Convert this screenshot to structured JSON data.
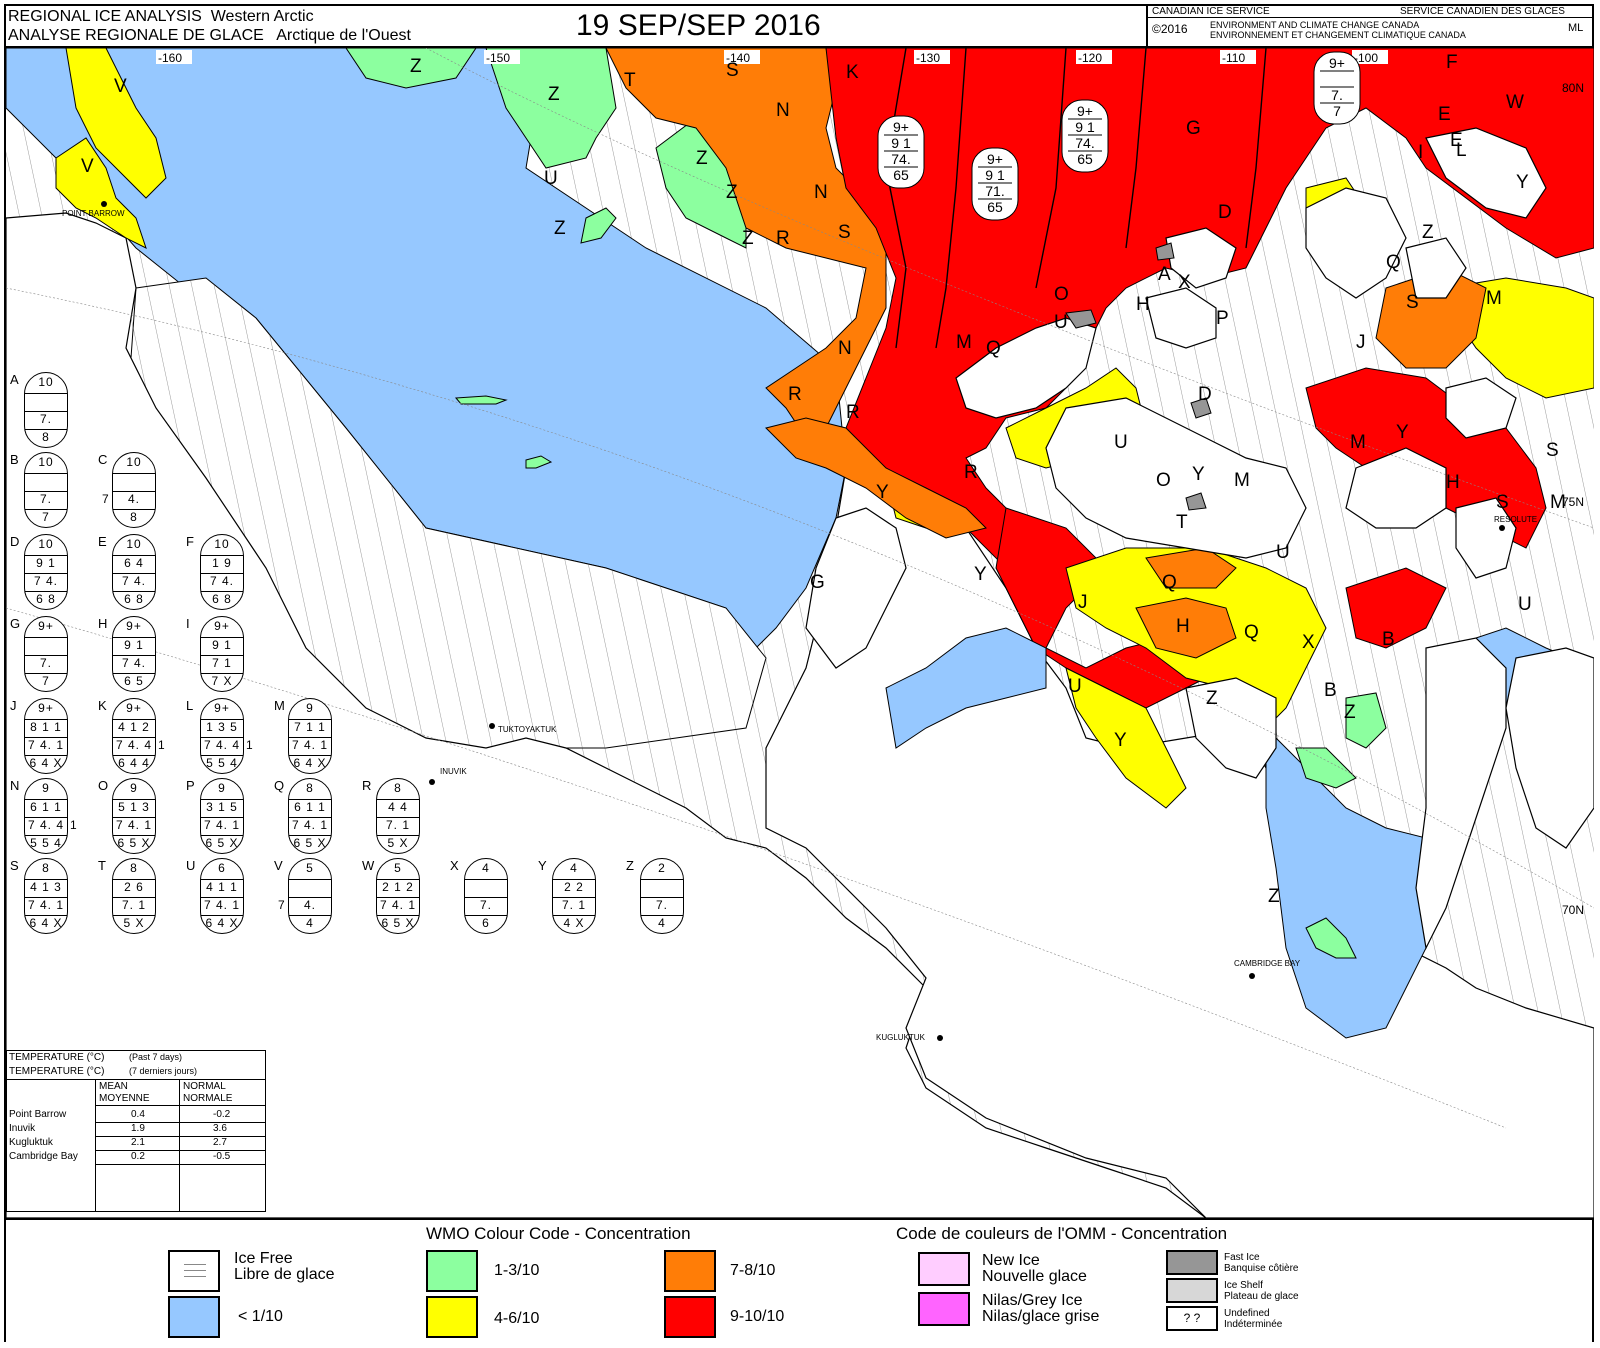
{
  "header": {
    "title_en_1": "REGIONAL ICE ANALYSIS",
    "region_en": "Western Arctic",
    "title_fr_1": "ANALYSE REGIONALE DE GLACE",
    "region_fr": "Arctique de l'Ouest",
    "date": "19 SEP/SEP 2016",
    "agency_en": "CANADIAN ICE SERVICE",
    "agency_fr": "SERVICE CANADIEN DES GLACES",
    "copyright": "©2016",
    "dept_en": "ENVIRONMENT AND CLIMATE CHANGE CANADA",
    "dept_fr": "ENVIRONNEMENT ET CHANGEMENT CLIMATIQUE CANADA",
    "initials": "ML"
  },
  "map": {
    "longitudes": [
      "-160",
      "-150",
      "-140",
      "-130",
      "-120",
      "-110",
      "-100"
    ],
    "latitudes": [
      "80N",
      "75N",
      "70N"
    ],
    "places": [
      "POINT BARROW",
      "TUKTOYAKTUK",
      "INUVIK",
      "RESOLUTE",
      "CAMBRIDGE BAY",
      "KUGLUKTUK"
    ],
    "region_labels": [
      "V",
      "V",
      "Z",
      "Z",
      "Z",
      "T",
      "S",
      "K",
      "U",
      "Z",
      "N",
      "N",
      "R",
      "S",
      "G",
      "I",
      "D",
      "A",
      "X",
      "O",
      "U",
      "M",
      "Q",
      "H",
      "P",
      "J",
      "L",
      "W",
      "F",
      "E",
      "Y",
      "Q",
      "M",
      "Z",
      "S",
      "D",
      "U",
      "Y",
      "M",
      "O",
      "T",
      "J",
      "Q",
      "H",
      "G",
      "Y",
      "Y",
      "U",
      "X",
      "B",
      "Q",
      "Z",
      "B",
      "Z",
      "U",
      "Y",
      "Z",
      "R",
      "R",
      "R",
      "N",
      "Z",
      "Z",
      "M",
      "Y",
      "S",
      "M",
      "E",
      "H",
      "S",
      "U"
    ],
    "inline_eggs": [
      {
        "r1": "9+",
        "r2": "9 1",
        "r3": "74.",
        "r4": "65"
      },
      {
        "r1": "9+",
        "r2": "9 1",
        "r3": "71.",
        "r4": "65"
      },
      {
        "r1": "9+",
        "r2": "9 1",
        "r3": "74.",
        "r4": "65"
      },
      {
        "r1": "9+",
        "r2": "",
        "r3": "7.",
        "r4": "7"
      }
    ]
  },
  "egg_codes": [
    {
      "letter": "A",
      "r1": "10",
      "r2": "",
      "r3": "7.",
      "r4": "8",
      "side_left": "",
      "side_right": ""
    },
    {
      "letter": "B",
      "r1": "10",
      "r2": "",
      "r3": "7.",
      "r4": "7",
      "side_left": "",
      "side_right": ""
    },
    {
      "letter": "C",
      "r1": "10",
      "r2": "",
      "r3": "4.",
      "r4": "8",
      "side_left": "7",
      "side_right": ""
    },
    {
      "letter": "D",
      "r1": "10",
      "r2": "9 1",
      "r3": "7 4.",
      "r4": "6 8",
      "side_left": "",
      "side_right": ""
    },
    {
      "letter": "E",
      "r1": "10",
      "r2": "6 4",
      "r3": "7 4.",
      "r4": "6 8",
      "side_left": "",
      "side_right": ""
    },
    {
      "letter": "F",
      "r1": "10",
      "r2": "1 9",
      "r3": "7 4.",
      "r4": "6 8",
      "side_left": "",
      "side_right": ""
    },
    {
      "letter": "G",
      "r1": "9+",
      "r2": "",
      "r3": "7.",
      "r4": "7",
      "side_left": "",
      "side_right": ""
    },
    {
      "letter": "H",
      "r1": "9+",
      "r2": "9 1",
      "r3": "7 4.",
      "r4": "6 5",
      "side_left": "",
      "side_right": ""
    },
    {
      "letter": "I",
      "r1": "9+",
      "r2": "9 1",
      "r3": "7 1",
      "r4": "7 X",
      "side_left": "",
      "side_right": ""
    },
    {
      "letter": "J",
      "r1": "9+",
      "r2": "8 1 1",
      "r3": "7 4. 1",
      "r4": "6 4 X",
      "side_left": "",
      "side_right": ""
    },
    {
      "letter": "K",
      "r1": "9+",
      "r2": "4 1 2",
      "r3": "7 4. 4",
      "r4": "6 4 4",
      "side_left": "",
      "side_right": "1"
    },
    {
      "letter": "L",
      "r1": "9+",
      "r2": "1 3 5",
      "r3": "7 4. 4",
      "r4": "5 5 4",
      "side_left": "",
      "side_right": "1"
    },
    {
      "letter": "M",
      "r1": "9",
      "r2": "7 1 1",
      "r3": "7 4. 1",
      "r4": "6 4 X",
      "side_left": "",
      "side_right": ""
    },
    {
      "letter": "N",
      "r1": "9",
      "r2": "6 1 1",
      "r3": "7 4. 4",
      "r4": "5 5 4",
      "side_left": "",
      "side_right": "1"
    },
    {
      "letter": "O",
      "r1": "9",
      "r2": "5 1 3",
      "r3": "7 4. 1",
      "r4": "6 5 X",
      "side_left": "",
      "side_right": ""
    },
    {
      "letter": "P",
      "r1": "9",
      "r2": "3 1 5",
      "r3": "7 4. 1",
      "r4": "6 5 X",
      "side_left": "",
      "side_right": ""
    },
    {
      "letter": "Q",
      "r1": "8",
      "r2": "6 1 1",
      "r3": "7 4. 1",
      "r4": "6 5 X",
      "side_left": "",
      "side_right": ""
    },
    {
      "letter": "R",
      "r1": "8",
      "r2": "4 4",
      "r3": "7. 1",
      "r4": "5 X",
      "side_left": "",
      "side_right": ""
    },
    {
      "letter": "S",
      "r1": "8",
      "r2": "4 1 3",
      "r3": "7 4. 1",
      "r4": "6 4 X",
      "side_left": "",
      "side_right": ""
    },
    {
      "letter": "T",
      "r1": "8",
      "r2": "2 6",
      "r3": "7. 1",
      "r4": "5 X",
      "side_left": "",
      "side_right": ""
    },
    {
      "letter": "U",
      "r1": "6",
      "r2": "4 1 1",
      "r3": "7 4. 1",
      "r4": "6 4 X",
      "side_left": "",
      "side_right": ""
    },
    {
      "letter": "V",
      "r1": "5",
      "r2": "",
      "r3": "4.",
      "r4": "4",
      "side_left": "7",
      "side_right": ""
    },
    {
      "letter": "W",
      "r1": "5",
      "r2": "2 1 2",
      "r3": "7 4. 1",
      "r4": "6 5 X",
      "side_left": "",
      "side_right": ""
    },
    {
      "letter": "X",
      "r1": "4",
      "r2": "",
      "r3": "7.",
      "r4": "6",
      "side_left": "",
      "side_right": ""
    },
    {
      "letter": "Y",
      "r1": "4",
      "r2": "2 2",
      "r3": "7. 1",
      "r4": "4 X",
      "side_left": "",
      "side_right": ""
    },
    {
      "letter": "Z",
      "r1": "2",
      "r2": "",
      "r3": "7.",
      "r4": "4",
      "side_left": "",
      "side_right": ""
    }
  ],
  "temperature": {
    "title_en": "TEMPERATURE (°C)",
    "period_en": "(Past 7 days)",
    "title_fr": "TEMPERATURE (°C)",
    "period_fr": "(7 derniers jours)",
    "col_mean_en": "MEAN",
    "col_mean_fr": "MOYENNE",
    "col_normal_en": "NORMAL",
    "col_normal_fr": "NORMALE",
    "rows": [
      {
        "station": "Point Barrow",
        "mean": "0.4",
        "normal": "-0.2"
      },
      {
        "station": "Inuvik",
        "mean": "1.9",
        "normal": "3.6"
      },
      {
        "station": "Kugluktuk",
        "mean": "2.1",
        "normal": "2.7"
      },
      {
        "station": "Cambridge Bay",
        "mean": "0.2",
        "normal": "-0.5"
      }
    ]
  },
  "legend": {
    "title_en": "WMO Colour Code - Concentration",
    "title_fr": "Code de couleurs de l'OMM - Concentration",
    "ice_free_en": "Ice Free",
    "ice_free_fr": "Libre de glace",
    "lt1": "< 1/10",
    "c13": "1-3/10",
    "c46": "4-6/10",
    "c78": "7-8/10",
    "c910": "9-10/10",
    "new_ice_en": "New Ice",
    "new_ice_fr": "Nouvelle glace",
    "nilas_en": "Nilas/Grey Ice",
    "nilas_fr": "Nilas/glace grise",
    "fast_en": "Fast Ice",
    "fast_fr": "Banquise côtière",
    "shelf_en": "Ice Shelf",
    "shelf_fr": "Plateau de glace",
    "undef_symbol": "? ?",
    "undef_en": "Undefined",
    "undef_fr": "Indéterminée",
    "colors": {
      "ice_free": "#ffffff",
      "lt1": "#96c8ff",
      "c13": "#8cff9f",
      "c46": "#ffff00",
      "c78": "#ff7d07",
      "c910": "#ff0000",
      "new_ice": "#ffcdff",
      "nilas": "#ff64ff",
      "fast": "#969696",
      "shelf": "#d7d7d7",
      "land": "#ffffff"
    }
  }
}
